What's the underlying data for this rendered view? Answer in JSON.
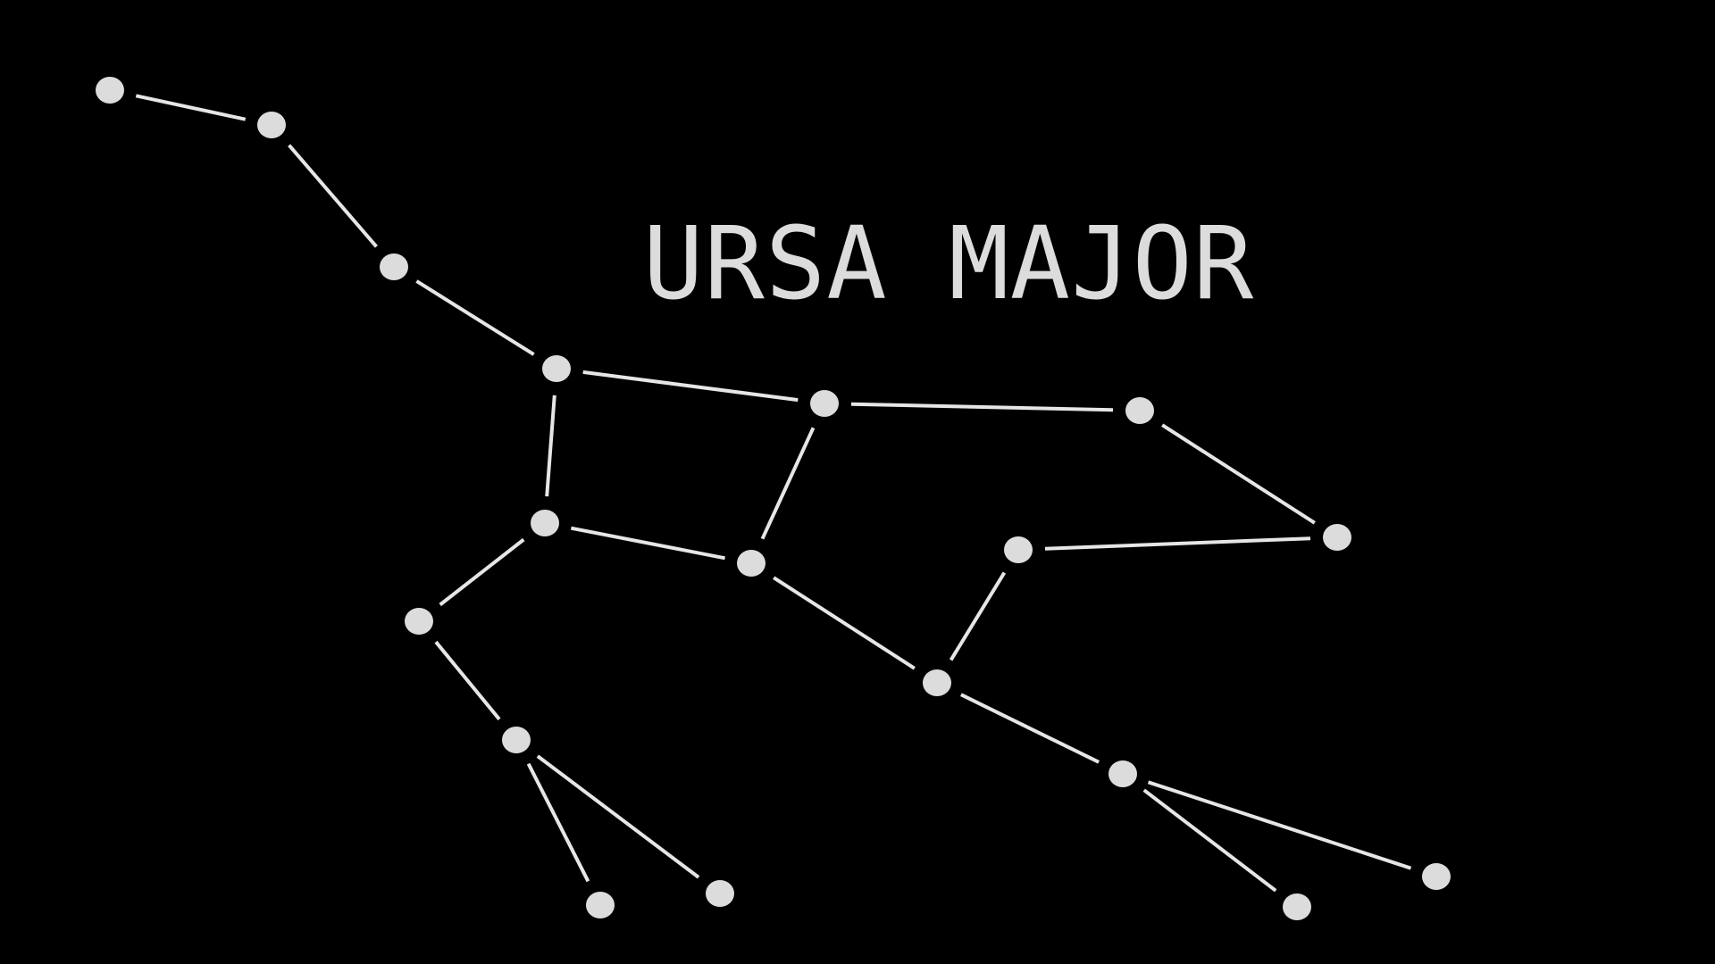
{
  "title": "URSA MAJOR",
  "colors": {
    "background": "#000000",
    "star": "#dcdcdc",
    "line": "#e6e6e6",
    "title": "#dcdcdc"
  },
  "stars": [
    "star-01",
    "star-02",
    "star-03",
    "star-04",
    "star-05",
    "star-06",
    "star-07",
    "star-08",
    "star-09",
    "star-10",
    "star-11",
    "star-12",
    "star-13",
    "star-14",
    "star-15",
    "star-16",
    "star-17",
    "star-18",
    "star-19",
    "star-20"
  ],
  "connections": [
    [
      "star-01",
      "star-02"
    ],
    [
      "star-02",
      "star-03"
    ],
    [
      "star-03",
      "star-04"
    ],
    [
      "star-04",
      "star-05"
    ],
    [
      "star-05",
      "star-06"
    ],
    [
      "star-06",
      "star-07"
    ],
    [
      "star-04",
      "star-08"
    ],
    [
      "star-05",
      "star-09"
    ],
    [
      "star-08",
      "star-09"
    ],
    [
      "star-08",
      "star-10"
    ],
    [
      "star-10",
      "star-11"
    ],
    [
      "star-11",
      "star-12"
    ],
    [
      "star-11",
      "star-13"
    ],
    [
      "star-09",
      "star-14"
    ],
    [
      "star-14",
      "star-15"
    ],
    [
      "star-15",
      "star-07"
    ],
    [
      "star-14",
      "star-16"
    ],
    [
      "star-16",
      "star-17"
    ],
    [
      "star-16",
      "star-18"
    ]
  ]
}
